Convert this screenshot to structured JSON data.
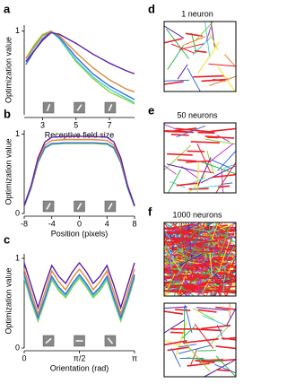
{
  "chart_data": [
    {
      "type": "line",
      "panel": "a",
      "ylabel": "Optimization value",
      "xlabel": "Receptive field size",
      "x": [
        2,
        2.5,
        3,
        3.5,
        4,
        5,
        6,
        7,
        8,
        8.5
      ],
      "xlim": [
        1.9,
        8.5
      ],
      "xticks": [
        3,
        5,
        7
      ],
      "ylim": [
        0.45,
        1.04
      ],
      "yticks": [
        1
      ],
      "series": [
        {
          "color": "#8bd53a",
          "values": [
            0.82,
            0.91,
            0.98,
            1.0,
            0.95,
            0.8,
            0.69,
            0.6,
            0.55,
            0.52
          ]
        },
        {
          "color": "#4fd0d8",
          "values": [
            0.8,
            0.89,
            0.97,
            1.0,
            0.95,
            0.81,
            0.7,
            0.62,
            0.56,
            0.53
          ]
        },
        {
          "color": "#3a6fd8",
          "values": [
            0.78,
            0.87,
            0.95,
            1.0,
            0.96,
            0.83,
            0.72,
            0.64,
            0.58,
            0.55
          ]
        },
        {
          "color": "#e08a3a",
          "values": [
            0.82,
            0.9,
            0.97,
            1.0,
            0.97,
            0.86,
            0.76,
            0.68,
            0.62,
            0.6
          ]
        },
        {
          "color": "#5b1fa6",
          "values": [
            0.8,
            0.87,
            0.94,
            0.99,
            0.98,
            0.92,
            0.85,
            0.79,
            0.74,
            0.72
          ]
        }
      ]
    },
    {
      "type": "line",
      "panel": "b",
      "ylabel": "Optimization value",
      "xlabel": "Position (pixels)",
      "x": [
        -8,
        -7,
        -6,
        -5,
        -4,
        -2,
        0,
        2,
        4,
        5,
        6,
        7,
        8
      ],
      "xlim": [
        -8,
        8
      ],
      "xticks": [
        -8,
        -4,
        0,
        4,
        8
      ],
      "ylim": [
        0,
        1.05
      ],
      "yticks": [
        0,
        1
      ],
      "series": [
        {
          "color": "#8bd53a",
          "values": [
            0.09,
            0.32,
            0.64,
            0.82,
            0.87,
            0.88,
            0.88,
            0.88,
            0.87,
            0.82,
            0.64,
            0.32,
            0.09
          ]
        },
        {
          "color": "#4fd0d8",
          "values": [
            0.09,
            0.32,
            0.64,
            0.82,
            0.88,
            0.89,
            0.89,
            0.89,
            0.88,
            0.82,
            0.64,
            0.32,
            0.09
          ]
        },
        {
          "color": "#3a6fd8",
          "values": [
            0.09,
            0.33,
            0.65,
            0.83,
            0.88,
            0.89,
            0.89,
            0.89,
            0.88,
            0.83,
            0.65,
            0.33,
            0.09
          ]
        },
        {
          "color": "#e08a3a",
          "values": [
            0.1,
            0.34,
            0.67,
            0.86,
            0.92,
            0.93,
            0.93,
            0.93,
            0.92,
            0.86,
            0.67,
            0.34,
            0.1
          ]
        },
        {
          "color": "#5b1fa6",
          "values": [
            0.1,
            0.35,
            0.7,
            0.9,
            0.96,
            0.97,
            0.97,
            0.97,
            0.96,
            0.9,
            0.7,
            0.35,
            0.1
          ]
        }
      ]
    },
    {
      "type": "line",
      "panel": "c",
      "ylabel": "Optimization value",
      "xlabel": "Orientation (rad)",
      "x": [
        0,
        0.19635,
        0.3927,
        0.58905,
        0.7854,
        0.98175,
        1.1781,
        1.37445,
        1.5708,
        1.76715,
        1.9635,
        2.15985,
        2.3562,
        2.55255,
        2.7489,
        2.94525,
        3.1416
      ],
      "xlim": [
        0,
        3.1416
      ],
      "xticks": [
        0,
        {
          "value": 1.5708,
          "label": "π/2"
        },
        {
          "value": 3.1416,
          "label": "π"
        }
      ],
      "ylim": [
        0,
        1.05
      ],
      "yticks": [
        0,
        1
      ],
      "series": [
        {
          "color": "#8bd53a",
          "values": [
            0.78,
            0.52,
            0.3,
            0.52,
            0.76,
            0.64,
            0.56,
            0.68,
            0.78,
            0.68,
            0.56,
            0.64,
            0.76,
            0.52,
            0.3,
            0.52,
            0.78
          ]
        },
        {
          "color": "#4fd0d8",
          "values": [
            0.8,
            0.54,
            0.32,
            0.54,
            0.78,
            0.66,
            0.58,
            0.7,
            0.8,
            0.7,
            0.58,
            0.66,
            0.78,
            0.54,
            0.32,
            0.54,
            0.8
          ]
        },
        {
          "color": "#3a6fd8",
          "values": [
            0.82,
            0.56,
            0.34,
            0.56,
            0.8,
            0.68,
            0.6,
            0.72,
            0.82,
            0.72,
            0.6,
            0.68,
            0.8,
            0.56,
            0.34,
            0.56,
            0.82
          ]
        },
        {
          "color": "#e08a3a",
          "values": [
            0.88,
            0.62,
            0.38,
            0.62,
            0.86,
            0.74,
            0.65,
            0.78,
            0.88,
            0.78,
            0.65,
            0.74,
            0.86,
            0.62,
            0.38,
            0.62,
            0.88
          ]
        },
        {
          "color": "#5b1fa6",
          "values": [
            0.95,
            0.7,
            0.45,
            0.7,
            0.92,
            0.8,
            0.72,
            0.85,
            0.95,
            0.85,
            0.72,
            0.8,
            0.92,
            0.7,
            0.45,
            0.7,
            0.95
          ]
        }
      ]
    }
  ],
  "segment_panels": [
    {
      "label": "d",
      "title": "1 neuron"
    },
    {
      "label": "e",
      "title": "50 neurons"
    },
    {
      "label": "f",
      "title": "1000 neurons"
    }
  ]
}
